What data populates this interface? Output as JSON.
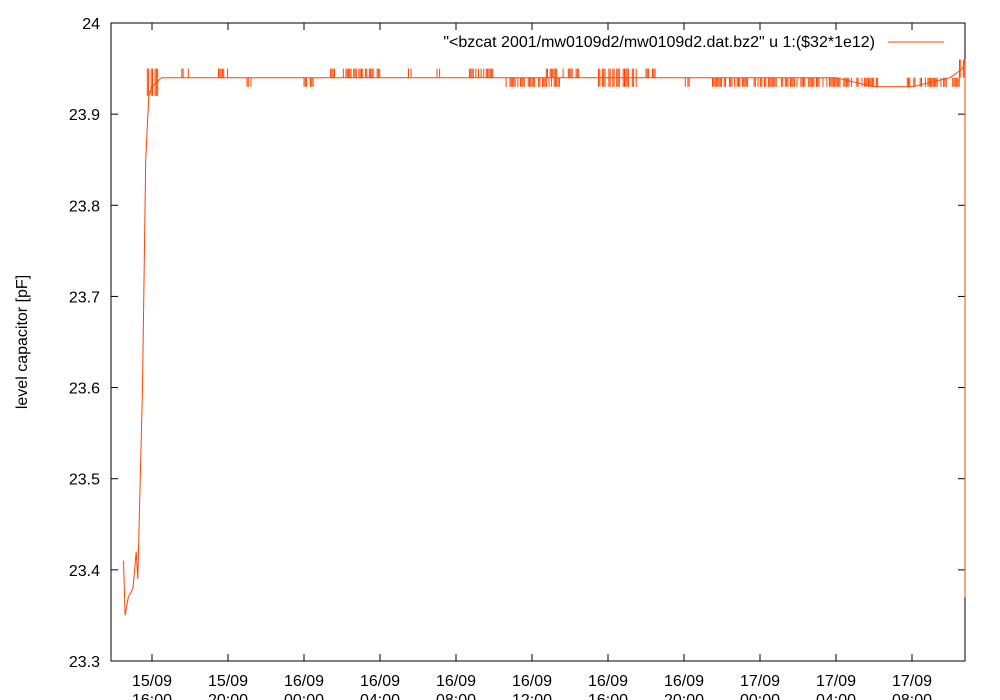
{
  "chart_data": {
    "type": "line",
    "ylabel": "level capacitor [pF]",
    "xlabel": "",
    "ylim": [
      23.3,
      24.0
    ],
    "xlim": [
      "15/09 14:30",
      "17/09 11:00"
    ],
    "grid": false,
    "legend": "top-right",
    "y_ticks": [
      "23.3",
      "23.4",
      "23.5",
      "23.6",
      "23.7",
      "23.8",
      "23.9",
      "24"
    ],
    "x_ticks": [
      {
        "date": "15/09",
        "time": "16:00"
      },
      {
        "date": "15/09",
        "time": "20:00"
      },
      {
        "date": "16/09",
        "time": "00:00"
      },
      {
        "date": "16/09",
        "time": "04:00"
      },
      {
        "date": "16/09",
        "time": "08:00"
      },
      {
        "date": "16/09",
        "time": "12:00"
      },
      {
        "date": "16/09",
        "time": "16:00"
      },
      {
        "date": "16/09",
        "time": "20:00"
      },
      {
        "date": "17/09",
        "time": "00:00"
      },
      {
        "date": "17/09",
        "time": "04:00"
      },
      {
        "date": "17/09",
        "time": "08:00"
      }
    ],
    "series": [
      {
        "name": "\"<bzcat 2001/mw0109d2/mw0109d2.dat.bz2\" u 1:($32*1e12)",
        "color": "#ff4400",
        "x": [
          "15/09 14:30",
          "15/09 14:35",
          "15/09 14:45",
          "15/09 15:00",
          "15/09 15:10",
          "15/09 15:15",
          "15/09 15:30",
          "15/09 15:40",
          "15/09 15:50",
          "15/09 16:00",
          "15/09 16:30",
          "15/09 18:00",
          "15/09 20:00",
          "15/09 22:00",
          "16/09 00:00",
          "16/09 02:00",
          "16/09 04:00",
          "16/09 06:00",
          "16/09 08:00",
          "16/09 10:00",
          "16/09 12:00",
          "16/09 14:00",
          "16/09 16:00",
          "16/09 18:00",
          "16/09 20:00",
          "16/09 22:00",
          "17/09 00:00",
          "17/09 02:00",
          "17/09 04:00",
          "17/09 06:00",
          "17/09 08:00",
          "17/09 10:00",
          "17/09 10:40",
          "17/09 10:50",
          "17/09 10:55",
          "17/09 11:00"
        ],
        "y": [
          23.41,
          23.35,
          23.37,
          23.38,
          23.42,
          23.39,
          23.6,
          23.85,
          23.92,
          23.93,
          23.94,
          23.94,
          23.94,
          23.94,
          23.94,
          23.94,
          23.94,
          23.94,
          23.94,
          23.94,
          23.94,
          23.94,
          23.94,
          23.94,
          23.94,
          23.94,
          23.94,
          23.94,
          23.94,
          23.93,
          23.93,
          23.94,
          23.95,
          23.96,
          23.6,
          23.37
        ]
      }
    ],
    "noise_bands": [
      {
        "from": "15/09 15:45",
        "to": "15/09 16:30",
        "low": 23.92,
        "high": 23.95
      },
      {
        "from": "15/09 17:30",
        "to": "15/09 18:00",
        "low": 23.94,
        "high": 23.95
      },
      {
        "from": "15/09 19:30",
        "to": "15/09 20:00",
        "low": 23.94,
        "high": 23.95
      },
      {
        "from": "15/09 21:00",
        "to": "15/09 21:15",
        "low": 23.93,
        "high": 23.94
      },
      {
        "from": "16/09 00:00",
        "to": "16/09 00:30",
        "low": 23.93,
        "high": 23.94
      },
      {
        "from": "16/09 01:20",
        "to": "16/09 01:40",
        "low": 23.94,
        "high": 23.95
      },
      {
        "from": "16/09 02:00",
        "to": "16/09 04:00",
        "low": 23.94,
        "high": 23.95
      },
      {
        "from": "16/09 05:30",
        "to": "16/09 05:40",
        "low": 23.94,
        "high": 23.95
      },
      {
        "from": "16/09 07:00",
        "to": "16/09 07:10",
        "low": 23.94,
        "high": 23.95
      },
      {
        "from": "16/09 08:30",
        "to": "16/09 10:00",
        "low": 23.94,
        "high": 23.95
      },
      {
        "from": "16/09 10:30",
        "to": "16/09 13:30",
        "low": 23.93,
        "high": 23.94
      },
      {
        "from": "16/09 12:45",
        "to": "16/09 14:30",
        "low": 23.94,
        "high": 23.95
      },
      {
        "from": "16/09 15:30",
        "to": "16/09 17:30",
        "low": 23.93,
        "high": 23.95
      },
      {
        "from": "16/09 18:00",
        "to": "16/09 18:30",
        "low": 23.94,
        "high": 23.95
      },
      {
        "from": "16/09 20:00",
        "to": "16/09 20:20",
        "low": 23.93,
        "high": 23.94
      },
      {
        "from": "16/09 21:30",
        "to": "17/09 06:15",
        "low": 23.93,
        "high": 23.94
      },
      {
        "from": "17/09 07:45",
        "to": "17/09 10:30",
        "low": 23.93,
        "high": 23.94
      },
      {
        "from": "17/09 10:30",
        "to": "17/09 11:00",
        "low": 23.94,
        "high": 23.96
      }
    ]
  }
}
